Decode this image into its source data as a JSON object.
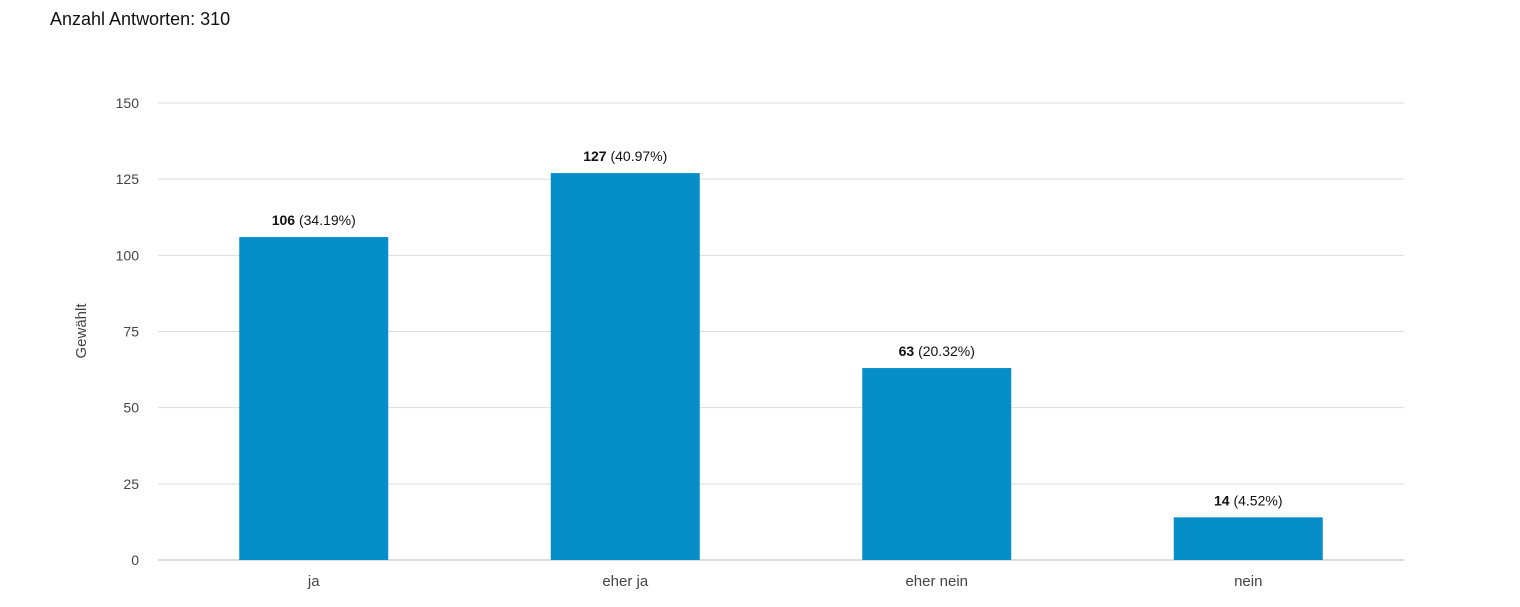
{
  "header": {
    "response_count_label": "Anzahl Antworten: 310"
  },
  "chart_data": {
    "type": "bar",
    "categories": [
      "ja",
      "eher ja",
      "eher nein",
      "nein"
    ],
    "values": [
      106,
      127,
      63,
      14
    ],
    "percent_labels": [
      "(34.19%)",
      "(40.97%)",
      "(20.32%)",
      "(4.52%)"
    ],
    "ylabel": "Gewählt",
    "ylim": [
      0,
      150
    ],
    "yticks": [
      0,
      25,
      50,
      75,
      100,
      125,
      150
    ],
    "grid": true,
    "bar_color": "#068ec8",
    "grid_color": "#dddddd"
  }
}
